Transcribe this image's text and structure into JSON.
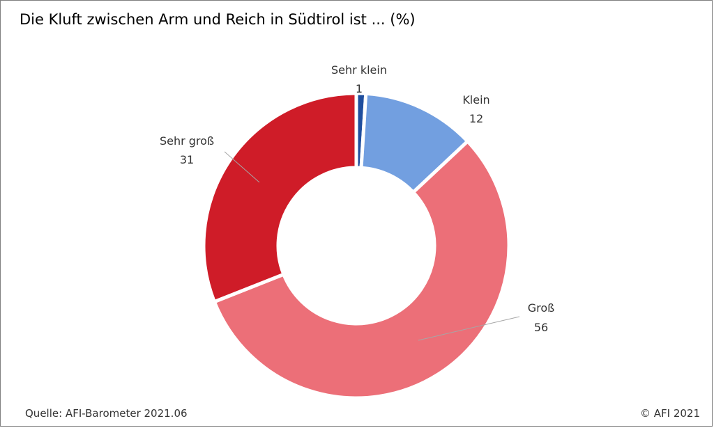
{
  "title": "Die Kluft zwischen Arm und Reich in Südtirol ist ... (%)",
  "source": "Quelle: AFI-Barometer 2021.06",
  "copyright": "© AFI 2021",
  "chart_data": {
    "type": "pie",
    "categories": [
      "Sehr klein",
      "Klein",
      "Groß",
      "Sehr groß"
    ],
    "values": [
      1,
      12,
      56,
      31
    ],
    "colors": [
      "#1f4e9e",
      "#729fe0",
      "#ec6f78",
      "#cf1c28"
    ],
    "title": "Die Kluft zwischen Arm und Reich in Südtirol ist ... (%)"
  }
}
